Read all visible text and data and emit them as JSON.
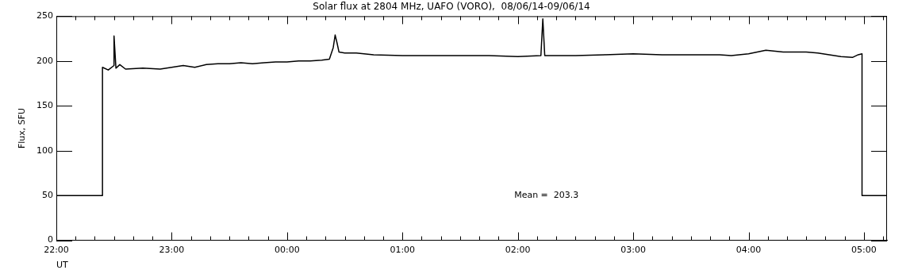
{
  "chart_data": {
    "type": "line",
    "title": "Solar flux at 2804 MHz, UAFO (VORO),  08/06/14-09/06/14",
    "xlabel": "UT",
    "ylabel": "Flux, SFU",
    "annotations": [
      "Mean =  203.3"
    ],
    "xlim": [
      "--06-08T22:00",
      "--06-09T05:12"
    ],
    "ylim": [
      0,
      250
    ],
    "xticks": [
      {
        "value": "--06-08T22:00",
        "label": "22:00"
      },
      {
        "value": "--06-08T22:10",
        "label": null
      },
      {
        "value": "--06-08T22:20",
        "label": null
      },
      {
        "value": "--06-08T22:30",
        "label": null
      },
      {
        "value": "--06-08T22:40",
        "label": null
      },
      {
        "value": "--06-08T22:50",
        "label": null
      },
      {
        "value": "--06-08T23:00",
        "label": "23:00"
      },
      {
        "value": "--06-08T23:10",
        "label": null
      },
      {
        "value": "--06-08T23:20",
        "label": null
      },
      {
        "value": "--06-08T23:30",
        "label": null
      },
      {
        "value": "--06-08T23:40",
        "label": null
      },
      {
        "value": "--06-08T23:50",
        "label": null
      },
      {
        "value": "--06-09T00:00",
        "label": "00:00"
      },
      {
        "value": "--06-09T00:10",
        "label": null
      },
      {
        "value": "--06-09T00:20",
        "label": null
      },
      {
        "value": "--06-09T00:30",
        "label": null
      },
      {
        "value": "--06-09T00:40",
        "label": null
      },
      {
        "value": "--06-09T00:50",
        "label": null
      },
      {
        "value": "--06-09T01:00",
        "label": "01:00"
      },
      {
        "value": "--06-09T01:10",
        "label": null
      },
      {
        "value": "--06-09T01:20",
        "label": null
      },
      {
        "value": "--06-09T01:30",
        "label": null
      },
      {
        "value": "--06-09T01:40",
        "label": null
      },
      {
        "value": "--06-09T01:50",
        "label": null
      },
      {
        "value": "--06-09T02:00",
        "label": "02:00"
      },
      {
        "value": "--06-09T02:10",
        "label": null
      },
      {
        "value": "--06-09T02:20",
        "label": null
      },
      {
        "value": "--06-09T02:30",
        "label": null
      },
      {
        "value": "--06-09T02:40",
        "label": null
      },
      {
        "value": "--06-09T02:50",
        "label": null
      },
      {
        "value": "--06-09T03:00",
        "label": "03:00"
      },
      {
        "value": "--06-09T03:10",
        "label": null
      },
      {
        "value": "--06-09T03:20",
        "label": null
      },
      {
        "value": "--06-09T03:30",
        "label": null
      },
      {
        "value": "--06-09T03:40",
        "label": null
      },
      {
        "value": "--06-09T03:50",
        "label": null
      },
      {
        "value": "--06-09T04:00",
        "label": "04:00"
      },
      {
        "value": "--06-09T04:10",
        "label": null
      },
      {
        "value": "--06-09T04:20",
        "label": null
      },
      {
        "value": "--06-09T04:30",
        "label": null
      },
      {
        "value": "--06-09T04:40",
        "label": null
      },
      {
        "value": "--06-09T04:50",
        "label": null
      },
      {
        "value": "--06-09T05:00",
        "label": "05:00"
      },
      {
        "value": "--06-09T05:10",
        "label": null
      }
    ],
    "yticks": [
      0,
      50,
      100,
      150,
      200,
      250
    ],
    "marker": "none",
    "line_style": "solid",
    "series": [
      {
        "color": "#000000",
        "x": [
          "--06-08T22:00",
          "--06-08T22:24",
          "--06-08T22:24",
          "--06-08T22:27",
          "--06-08T22:30",
          "--06-08T22:30",
          "--06-08T22:31",
          "--06-08T22:33",
          "--06-08T22:36",
          "--06-08T22:45",
          "--06-08T22:54",
          "--06-08T23:00",
          "--06-08T23:06",
          "--06-08T23:12",
          "--06-08T23:18",
          "--06-08T23:24",
          "--06-08T23:30",
          "--06-08T23:36",
          "--06-08T23:42",
          "--06-08T23:48",
          "--06-08T23:54",
          "--06-09T00:00",
          "--06-09T00:06",
          "--06-09T00:12",
          "--06-09T00:18",
          "--06-09T00:22",
          "--06-09T00:24",
          "--06-09T00:25",
          "--06-09T00:26",
          "--06-09T00:27",
          "--06-09T00:30",
          "--06-09T00:36",
          "--06-09T00:45",
          "--06-09T01:00",
          "--06-09T01:15",
          "--06-09T01:30",
          "--06-09T01:45",
          "--06-09T02:00",
          "--06-09T02:12",
          "--06-09T02:13",
          "--06-09T02:14",
          "--06-09T02:30",
          "--06-09T02:45",
          "--06-09T03:00",
          "--06-09T03:15",
          "--06-09T03:30",
          "--06-09T03:45",
          "--06-09T03:51",
          "--06-09T04:00",
          "--06-09T04:09",
          "--06-09T04:18",
          "--06-09T04:30",
          "--06-09T04:36",
          "--06-09T04:42",
          "--06-09T04:48",
          "--06-09T04:54",
          "--06-09T04:57",
          "--06-09T04:59",
          "--06-09T04:59",
          "--06-09T05:12"
        ],
        "values": [
          50,
          50,
          193,
          190,
          195,
          228,
          192,
          196,
          191,
          192,
          191,
          193,
          195,
          193,
          196,
          197,
          197,
          198,
          197,
          198,
          199,
          199,
          200,
          200,
          201,
          202,
          215,
          229,
          220,
          210,
          209,
          209,
          207,
          206,
          206,
          206,
          206,
          205,
          206,
          247,
          206,
          206,
          207,
          208,
          207,
          207,
          207,
          206,
          208,
          212,
          210,
          210,
          209,
          207,
          205,
          204,
          207,
          208,
          50,
          50
        ]
      }
    ]
  }
}
